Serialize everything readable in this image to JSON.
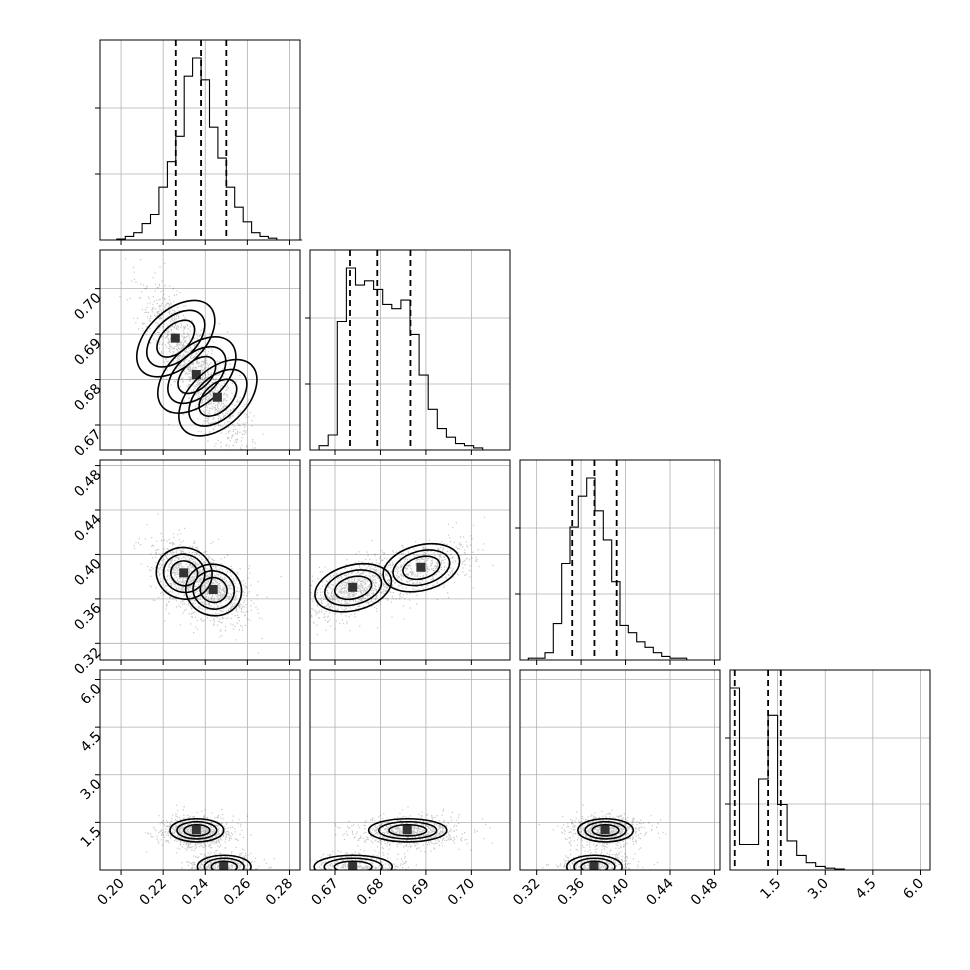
{
  "chart_data": {
    "type": "corner",
    "parameters": 4,
    "ticks": [
      {
        "values": [
          0.2,
          0.22,
          0.24,
          0.26,
          0.28
        ],
        "labels": [
          "0.20",
          "0.22",
          "0.24",
          "0.26",
          "0.28"
        ],
        "range": [
          0.19,
          0.285
        ]
      },
      {
        "values": [
          0.67,
          0.68,
          0.69,
          0.7
        ],
        "labels": [
          "0.67",
          "0.68",
          "0.69",
          "0.70"
        ],
        "range": [
          0.6645,
          0.7085
        ]
      },
      {
        "values": [
          0.32,
          0.36,
          0.4,
          0.44,
          0.48
        ],
        "labels": [
          "0.32",
          "0.36",
          "0.40",
          "0.44",
          "0.48"
        ],
        "range": [
          0.305,
          0.485
        ]
      },
      {
        "values": [
          1.5,
          3.0,
          4.5,
          6.0
        ],
        "labels": [
          "1.5",
          "3.0",
          "4.5",
          "6.0"
        ],
        "range": [
          0.0,
          6.3
        ]
      }
    ],
    "marginals": [
      {
        "bin_edges_start": 0.19,
        "bin_width": 0.004,
        "counts": [
          0,
          0,
          0.5,
          2,
          4,
          9,
          14,
          29,
          43,
          57,
          90,
          100,
          88,
          62,
          45,
          29,
          18,
          10,
          4,
          2,
          1,
          0,
          0,
          0
        ],
        "quantiles": [
          0.226,
          0.238,
          0.25
        ]
      },
      {
        "bin_edges_start": 0.6645,
        "bin_width": 0.002,
        "counts": [
          0,
          2,
          7,
          60,
          85,
          77,
          79,
          75,
          68,
          66,
          70,
          54,
          35,
          19,
          10,
          6,
          3,
          2,
          1,
          0,
          0,
          0
        ],
        "quantiles": [
          0.6733,
          0.6793,
          0.6866
        ]
      },
      {
        "bin_edges_start": 0.305,
        "bin_width": 0.0075,
        "counts": [
          0,
          1,
          1,
          4,
          20,
          53,
          73,
          90,
          100,
          82,
          66,
          43,
          19,
          15,
          10,
          7,
          4,
          2,
          1,
          1,
          0,
          0,
          0,
          0
        ],
        "quantiles": [
          0.352,
          0.372,
          0.392
        ]
      },
      {
        "bin_edges_start": 0.0,
        "bin_width": 0.3,
        "counts": [
          100,
          14,
          14,
          50,
          85,
          36,
          16,
          8,
          4,
          2,
          1,
          0.5,
          0,
          0,
          0,
          0,
          0,
          0,
          0,
          0,
          0
        ],
        "quantiles": [
          0.15,
          1.2,
          1.6
        ]
      }
    ],
    "pairs": [
      {
        "row": 1,
        "col": 0,
        "cov": [
          [
            0.00012,
            -7e-05
          ],
          [
            -7e-05,
            7.2e-05
          ]
        ],
        "modes": [
          [
            0.226,
            0.689,
            0.35
          ],
          [
            0.236,
            0.681,
            0.35
          ],
          [
            0.246,
            0.676,
            0.3
          ]
        ]
      },
      {
        "row": 2,
        "col": 0,
        "cov": [
          [
            0.00012,
            -7e-05
          ],
          [
            -7e-05,
            0.00036
          ]
        ],
        "modes": [
          [
            0.23,
            0.383,
            0.5
          ],
          [
            0.244,
            0.368,
            0.5
          ]
        ]
      },
      {
        "row": 2,
        "col": 1,
        "cov": [
          [
            5e-05,
            6e-05
          ],
          [
            6e-05,
            0.00028
          ]
        ],
        "modes": [
          [
            0.674,
            0.37,
            0.6
          ],
          [
            0.689,
            0.388,
            0.4
          ]
        ]
      },
      {
        "row": 3,
        "col": 0,
        "cov": [
          [
            0.00011,
            0
          ],
          [
            0,
            0.09
          ]
        ],
        "modes": [
          [
            0.236,
            1.25,
            0.65
          ],
          [
            0.249,
            0.1,
            0.35
          ]
        ]
      },
      {
        "row": 3,
        "col": 1,
        "cov": [
          [
            5e-05,
            0
          ],
          [
            0,
            0.09
          ]
        ],
        "modes": [
          [
            0.686,
            1.25,
            0.6
          ],
          [
            0.674,
            0.1,
            0.4
          ]
        ]
      },
      {
        "row": 3,
        "col": 2,
        "cov": [
          [
            0.00042,
            0
          ],
          [
            0,
            0.09
          ]
        ],
        "modes": [
          [
            0.382,
            1.25,
            0.6
          ],
          [
            0.372,
            0.1,
            0.4
          ]
        ]
      }
    ],
    "title": "",
    "legend": "none",
    "grid": true
  }
}
